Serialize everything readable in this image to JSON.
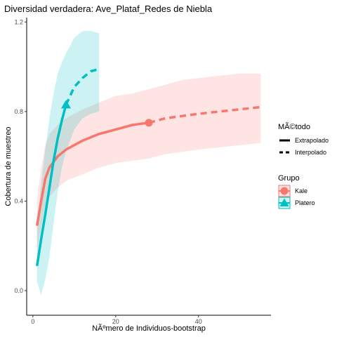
{
  "chart_data": {
    "type": "line",
    "title": "Diversidad verdadera: Ave_Plataf_Redes de Niebla",
    "xlabel": "NÃºmero de Individuos-bootstrap",
    "ylabel": "Cobertura de muestreo",
    "xlim": [
      -1.5,
      57.5
    ],
    "ylim": [
      -0.11,
      1.22
    ],
    "x_ticks": [
      0,
      20,
      40
    ],
    "y_ticks": [
      0.0,
      0.4,
      0.8,
      1.2
    ],
    "y_tick_labels": [
      "0.0",
      "0.4",
      "0.8",
      "1.2"
    ],
    "grid": false,
    "legend_position": "right",
    "legend": {
      "method_title": "MÃ©todo",
      "method_items": [
        "Extrapolado",
        "Interpolado"
      ],
      "group_title": "Grupo",
      "group_items": [
        "Kale",
        "Platero"
      ]
    },
    "series": [
      {
        "name": "Kale",
        "color": "#F8766D",
        "marker": "circle",
        "observed": {
          "x": 28,
          "y": 0.75
        },
        "interpolated": [
          {
            "x": 1,
            "y": 0.29,
            "lo": 0.17,
            "hi": 0.4
          },
          {
            "x": 2,
            "y": 0.4,
            "lo": 0.28,
            "hi": 0.55
          },
          {
            "x": 3,
            "y": 0.5,
            "lo": 0.38,
            "hi": 0.65
          },
          {
            "x": 4,
            "y": 0.55,
            "lo": 0.42,
            "hi": 0.7
          },
          {
            "x": 6,
            "y": 0.6,
            "lo": 0.46,
            "hi": 0.74
          },
          {
            "x": 8,
            "y": 0.63,
            "lo": 0.49,
            "hi": 0.77
          },
          {
            "x": 12,
            "y": 0.67,
            "lo": 0.52,
            "hi": 0.81
          },
          {
            "x": 16,
            "y": 0.7,
            "lo": 0.55,
            "hi": 0.84
          },
          {
            "x": 20,
            "y": 0.72,
            "lo": 0.57,
            "hi": 0.87
          },
          {
            "x": 24,
            "y": 0.74,
            "lo": 0.58,
            "hi": 0.88
          },
          {
            "x": 28,
            "y": 0.75,
            "lo": 0.59,
            "hi": 0.9
          }
        ],
        "extrapolated": [
          {
            "x": 28,
            "y": 0.75,
            "lo": 0.59,
            "hi": 0.9
          },
          {
            "x": 32,
            "y": 0.77,
            "lo": 0.61,
            "hi": 0.92
          },
          {
            "x": 36,
            "y": 0.78,
            "lo": 0.62,
            "hi": 0.94
          },
          {
            "x": 40,
            "y": 0.79,
            "lo": 0.63,
            "hi": 0.95
          },
          {
            "x": 45,
            "y": 0.8,
            "lo": 0.64,
            "hi": 0.96
          },
          {
            "x": 50,
            "y": 0.81,
            "lo": 0.65,
            "hi": 0.97
          },
          {
            "x": 55,
            "y": 0.82,
            "lo": 0.66,
            "hi": 0.97
          }
        ]
      },
      {
        "name": "Platero",
        "color": "#00BFC4",
        "marker": "triangle",
        "observed": {
          "x": 8,
          "y": 0.83
        },
        "interpolated": [
          {
            "x": 1,
            "y": 0.11,
            "lo": 0.04,
            "hi": 0.27
          },
          {
            "x": 2,
            "y": 0.23,
            "lo": -0.02,
            "hi": 0.48
          },
          {
            "x": 3,
            "y": 0.34,
            "lo": 0.05,
            "hi": 0.63
          },
          {
            "x": 4,
            "y": 0.46,
            "lo": 0.15,
            "hi": 0.77
          },
          {
            "x": 5,
            "y": 0.58,
            "lo": 0.3,
            "hi": 0.88
          },
          {
            "x": 6,
            "y": 0.68,
            "lo": 0.44,
            "hi": 0.97
          },
          {
            "x": 7,
            "y": 0.76,
            "lo": 0.55,
            "hi": 1.02
          },
          {
            "x": 8,
            "y": 0.83,
            "lo": 0.62,
            "hi": 1.06
          }
        ],
        "extrapolated": [
          {
            "x": 8,
            "y": 0.83,
            "lo": 0.62,
            "hi": 1.06
          },
          {
            "x": 10,
            "y": 0.91,
            "lo": 0.72,
            "hi": 1.13
          },
          {
            "x": 12,
            "y": 0.95,
            "lo": 0.77,
            "hi": 1.16
          },
          {
            "x": 14,
            "y": 0.98,
            "lo": 0.79,
            "hi": 1.16
          },
          {
            "x": 16,
            "y": 0.99,
            "lo": 0.8,
            "hi": 1.15
          }
        ]
      }
    ]
  }
}
